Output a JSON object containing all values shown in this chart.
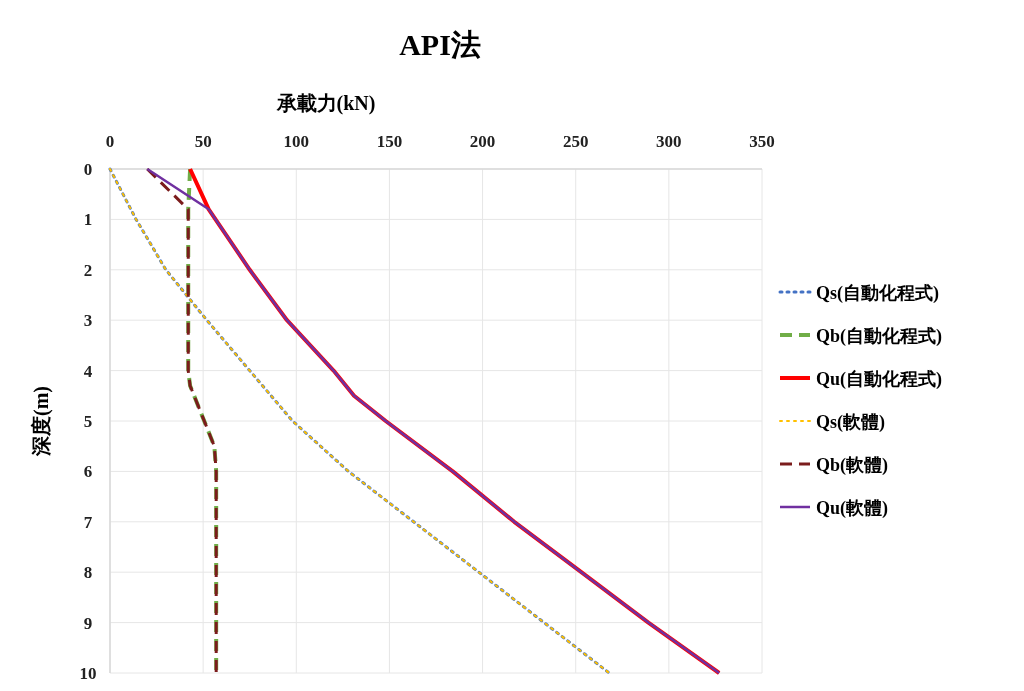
{
  "chart_data": {
    "type": "line",
    "title": "API法",
    "xlabel": "承載力(kN)",
    "ylabel": "深度(m)",
    "xlim": [
      0,
      350
    ],
    "xticks": [
      0,
      50,
      100,
      150,
      200,
      250,
      300,
      350
    ],
    "ylim": [
      10,
      0
    ],
    "yticks": [
      0,
      1,
      2,
      3,
      4,
      5,
      6,
      7,
      8,
      9,
      10
    ],
    "grid": true,
    "legend": "right",
    "series": [
      {
        "name": "Qs(自動化程式)",
        "color": "#4472c4",
        "line_style": "dotted",
        "x": [
          0,
          14,
          30,
          52,
          75,
          98,
          128,
          163,
          198,
          233,
          268
        ],
        "values": [
          0,
          1,
          2,
          3,
          4,
          5,
          6,
          7,
          8,
          9,
          10
        ]
      },
      {
        "name": "Qb(自動化程式)",
        "color": "#70ad47",
        "line_style": "dashed",
        "x": [
          43,
          42,
          42,
          42,
          42,
          43,
          56,
          57,
          57,
          57,
          57,
          57,
          57
        ],
        "values": [
          0,
          0.8,
          2,
          3,
          4,
          4.3,
          5.5,
          6,
          7,
          8,
          9,
          9.5,
          10
        ]
      },
      {
        "name": "Qu(自動化程式)",
        "color": "#ff0000",
        "line_style": "solid",
        "x": [
          43,
          53,
          75,
          95,
          120,
          131,
          148,
          184,
          217,
          253,
          289,
          327
        ],
        "values": [
          0,
          0.8,
          2,
          3,
          4,
          4.5,
          5,
          6,
          7,
          8,
          9,
          10
        ]
      },
      {
        "name": "Qs(軟體)",
        "color": "#ffc000",
        "line_style": "dotted",
        "x": [
          0,
          14,
          30,
          52,
          75,
          98,
          128,
          163,
          198,
          233,
          268
        ],
        "values": [
          0,
          1,
          2,
          3,
          4,
          5,
          6,
          7,
          8,
          9,
          10
        ]
      },
      {
        "name": "Qb(軟體)",
        "color": "#7b1c1c",
        "line_style": "dashed",
        "x": [
          20,
          42,
          42,
          42,
          42,
          43,
          56,
          57,
          57,
          57,
          57,
          57
        ],
        "values": [
          0,
          0.8,
          2,
          3,
          4,
          4.3,
          5.5,
          6,
          7,
          8,
          9,
          10
        ]
      },
      {
        "name": "Qu(軟體)",
        "color": "#7030a0",
        "line_style": "solid",
        "x": [
          20,
          53,
          75,
          95,
          120,
          131,
          148,
          184,
          217,
          253,
          289,
          327
        ],
        "values": [
          0,
          0.8,
          2,
          3,
          4,
          4.5,
          5,
          6,
          7,
          8,
          9,
          10
        ]
      }
    ]
  }
}
